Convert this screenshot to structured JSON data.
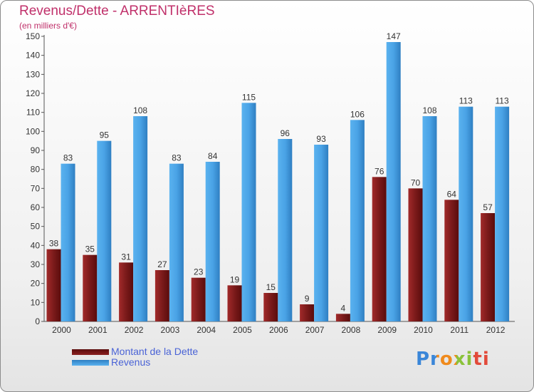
{
  "header": {
    "title": "Revenus/Dette - ARRENTIèRES",
    "subtitle": "(en milliers d'€)"
  },
  "colors": {
    "dette": "#7a1a1a",
    "revenus": "#4aa3e6",
    "title": "#c0306a",
    "legend_text": "#4a63d6"
  },
  "chart_data": {
    "type": "bar",
    "title": "Revenus/Dette - ARRENTIèRES",
    "ylabel": "(en milliers d'€)",
    "xlabel": "",
    "ylim": [
      0,
      150
    ],
    "y_ticks": [
      0,
      10,
      20,
      30,
      40,
      50,
      60,
      70,
      80,
      90,
      100,
      110,
      120,
      130,
      140,
      150
    ],
    "grid": false,
    "legend_position": "bottom-left",
    "categories": [
      "2000",
      "2001",
      "2002",
      "2003",
      "2004",
      "2005",
      "2006",
      "2007",
      "2008",
      "2009",
      "2010",
      "2011",
      "2012"
    ],
    "series": [
      {
        "name": "Montant de la Dette",
        "values": [
          38,
          35,
          31,
          27,
          23,
          19,
          15,
          9,
          4,
          76,
          70,
          64,
          57
        ]
      },
      {
        "name": "Revenus",
        "values": [
          83,
          95,
          108,
          83,
          84,
          115,
          96,
          93,
          106,
          147,
          108,
          113,
          113
        ]
      }
    ]
  },
  "legend": {
    "items": [
      {
        "label": "Montant de la Dette"
      },
      {
        "label": "Revenus"
      }
    ]
  },
  "logo": {
    "text": "Proxiti"
  }
}
